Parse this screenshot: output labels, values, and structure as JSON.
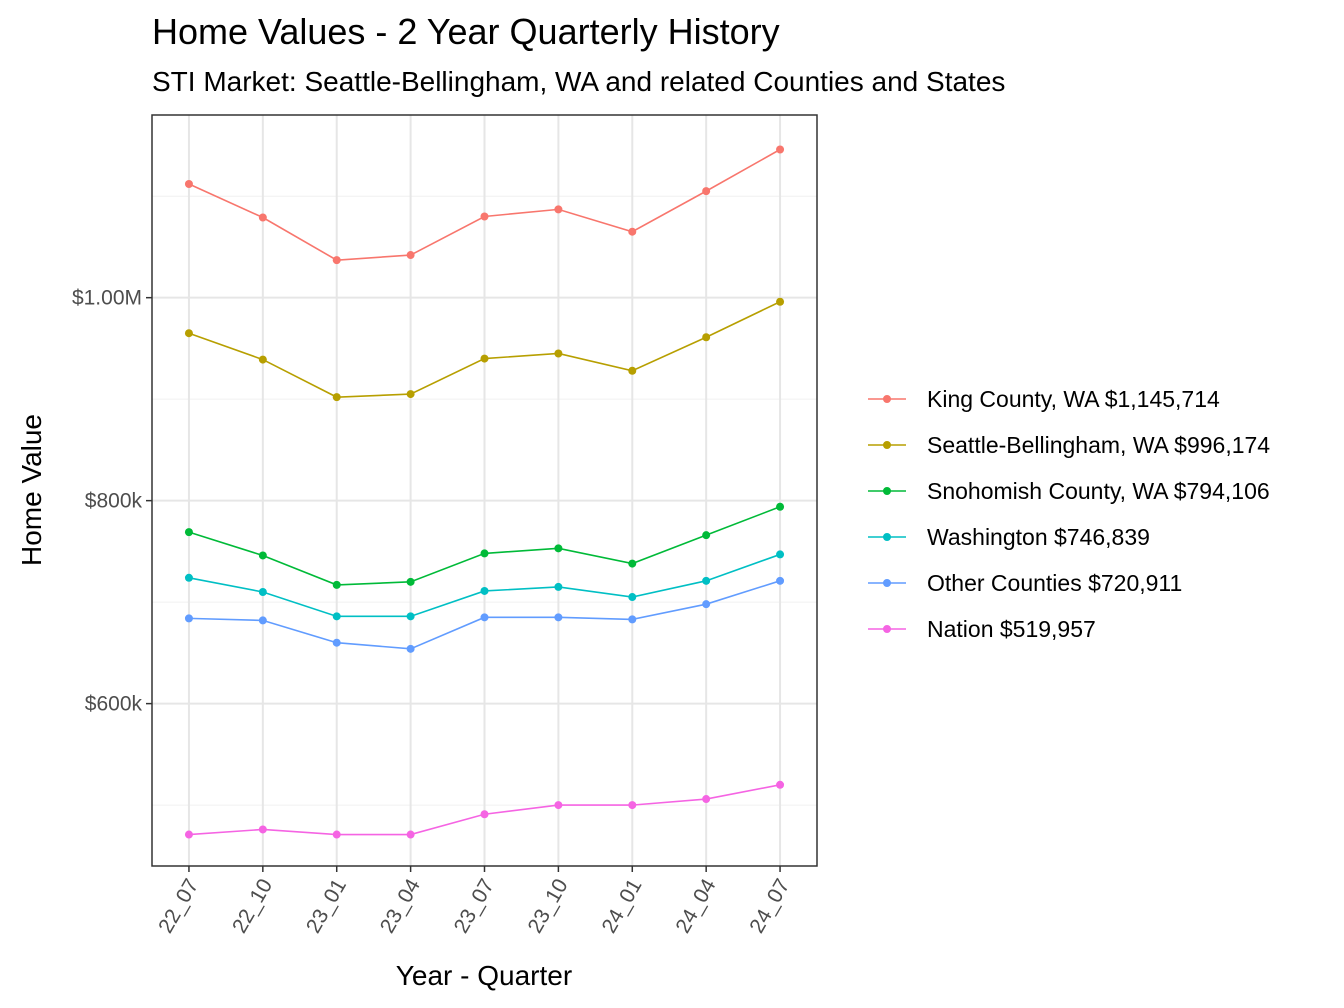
{
  "chart_data": {
    "type": "line",
    "title": "Home Values - 2 Year Quarterly History",
    "subtitle": "STI Market: Seattle-Bellingham, WA and related Counties and States",
    "xlabel": "Year - Quarter",
    "ylabel": "Home Value",
    "categories": [
      "22_07",
      "22_10",
      "23_01",
      "23_04",
      "23_07",
      "23_10",
      "24_01",
      "24_04",
      "24_07"
    ],
    "ylim": [
      440000,
      1180000
    ],
    "yticks": [
      {
        "value": 600000,
        "label": "$600k"
      },
      {
        "value": 800000,
        "label": "$800k"
      },
      {
        "value": 1000000,
        "label": "$1.00M"
      }
    ],
    "yminor": [
      500000,
      700000,
      900000,
      1100000
    ],
    "grid": true,
    "legend_position": "right",
    "series": [
      {
        "name": "King County, WA $1,145,714",
        "color": "#F8766D",
        "values": [
          1112000,
          1079000,
          1037000,
          1042000,
          1080000,
          1087000,
          1065000,
          1105000,
          1146000
        ]
      },
      {
        "name": "Seattle-Bellingham, WA $996,174",
        "color": "#B79F00",
        "values": [
          965000,
          939000,
          902000,
          905000,
          940000,
          945000,
          928000,
          961000,
          996000
        ]
      },
      {
        "name": "Snohomish County, WA $794,106",
        "color": "#00BA38",
        "values": [
          769000,
          746000,
          717000,
          720000,
          748000,
          753000,
          738000,
          766000,
          794000
        ]
      },
      {
        "name": "Washington $746,839",
        "color": "#00BFC4",
        "values": [
          724000,
          710000,
          686000,
          686000,
          711000,
          715000,
          705000,
          721000,
          747000
        ]
      },
      {
        "name": "Other Counties $720,911",
        "color": "#619CFF",
        "values": [
          684000,
          682000,
          660000,
          654000,
          685000,
          685000,
          683000,
          698000,
          721000
        ]
      },
      {
        "name": "Nation $519,957",
        "color": "#F564E3",
        "values": [
          471000,
          476000,
          471000,
          471000,
          491000,
          500000,
          500000,
          506000,
          520000
        ]
      }
    ]
  }
}
